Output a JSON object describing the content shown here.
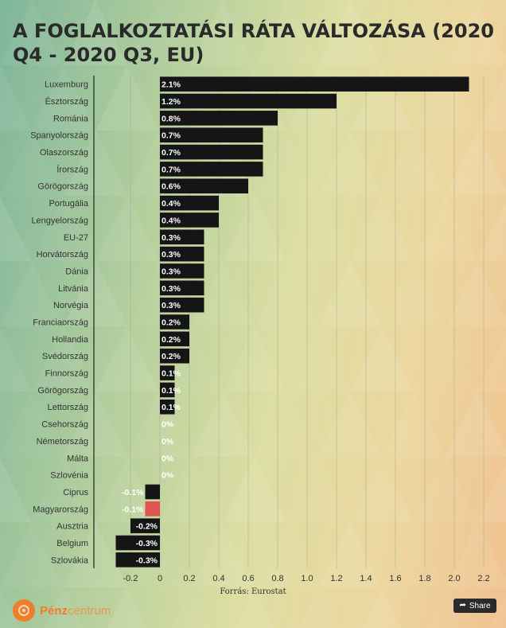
{
  "title": "A FOGLALKOZTATÁSI RÁTA VÁLTOZÁSA (2020 Q4 - 2020 Q3, EU)",
  "source": "Forrás: Eurostat",
  "brand": {
    "name_main": "Pénz",
    "name_rest": "centrum"
  },
  "share_label": "Share",
  "colors": {
    "bar": "#151515",
    "highlight": "#e05353",
    "label_inside": "#ffffff",
    "axis": "#222222"
  },
  "chart_data": {
    "type": "bar",
    "orientation": "horizontal",
    "categories": [
      "Luxemburg",
      "Észtország",
      "Románia",
      "Spanyolország",
      "Olaszország",
      "Írország",
      "Görögország",
      "Portugália",
      "Lengyelország",
      "EU-27",
      "Horvátország",
      "Dánia",
      "Litvánia",
      "Norvégia",
      "Franciaország",
      "Hollandia",
      "Svédország",
      "Finnország",
      "Görögország",
      "Lettország",
      "Csehország",
      "Németország",
      "Málta",
      "Szlovénia",
      "Ciprus",
      "Magyarország",
      "Ausztria",
      "Belgium",
      "Szlovákia"
    ],
    "values": [
      2.1,
      1.2,
      0.8,
      0.7,
      0.7,
      0.7,
      0.6,
      0.4,
      0.4,
      0.3,
      0.3,
      0.3,
      0.3,
      0.3,
      0.2,
      0.2,
      0.2,
      0.1,
      0.1,
      0.1,
      0,
      0,
      0,
      0,
      -0.1,
      -0.1,
      -0.2,
      -0.3,
      -0.3
    ],
    "value_labels": [
      "2.1%",
      "1.2%",
      "0.8%",
      "0.7%",
      "0.7%",
      "0.7%",
      "0.6%",
      "0.4%",
      "0.4%",
      "0.3%",
      "0.3%",
      "0.3%",
      "0.3%",
      "0.3%",
      "0.2%",
      "0.2%",
      "0.2%",
      "0.1%",
      "0.1%",
      "0.1%",
      "0%",
      "0%",
      "0%",
      "0%",
      "-0.1%",
      "-0.1%",
      "-0.2%",
      "-0.3%",
      "-0.3%"
    ],
    "highlight": "Magyarország",
    "xlim": [
      -0.3,
      2.3
    ],
    "xticks": [
      -0.2,
      0,
      0.2,
      0.4,
      0.6,
      0.8,
      1.0,
      1.2,
      1.4,
      1.6,
      1.8,
      2.0,
      2.2
    ],
    "xtick_labels": [
      "-0.2",
      "0",
      "0.2",
      "0.4",
      "0.6",
      "0.8",
      "1.0",
      "1.2",
      "1.4",
      "1.6",
      "1.8",
      "2.0",
      "2.2"
    ],
    "grid": true,
    "xlabel": "",
    "ylabel": ""
  }
}
